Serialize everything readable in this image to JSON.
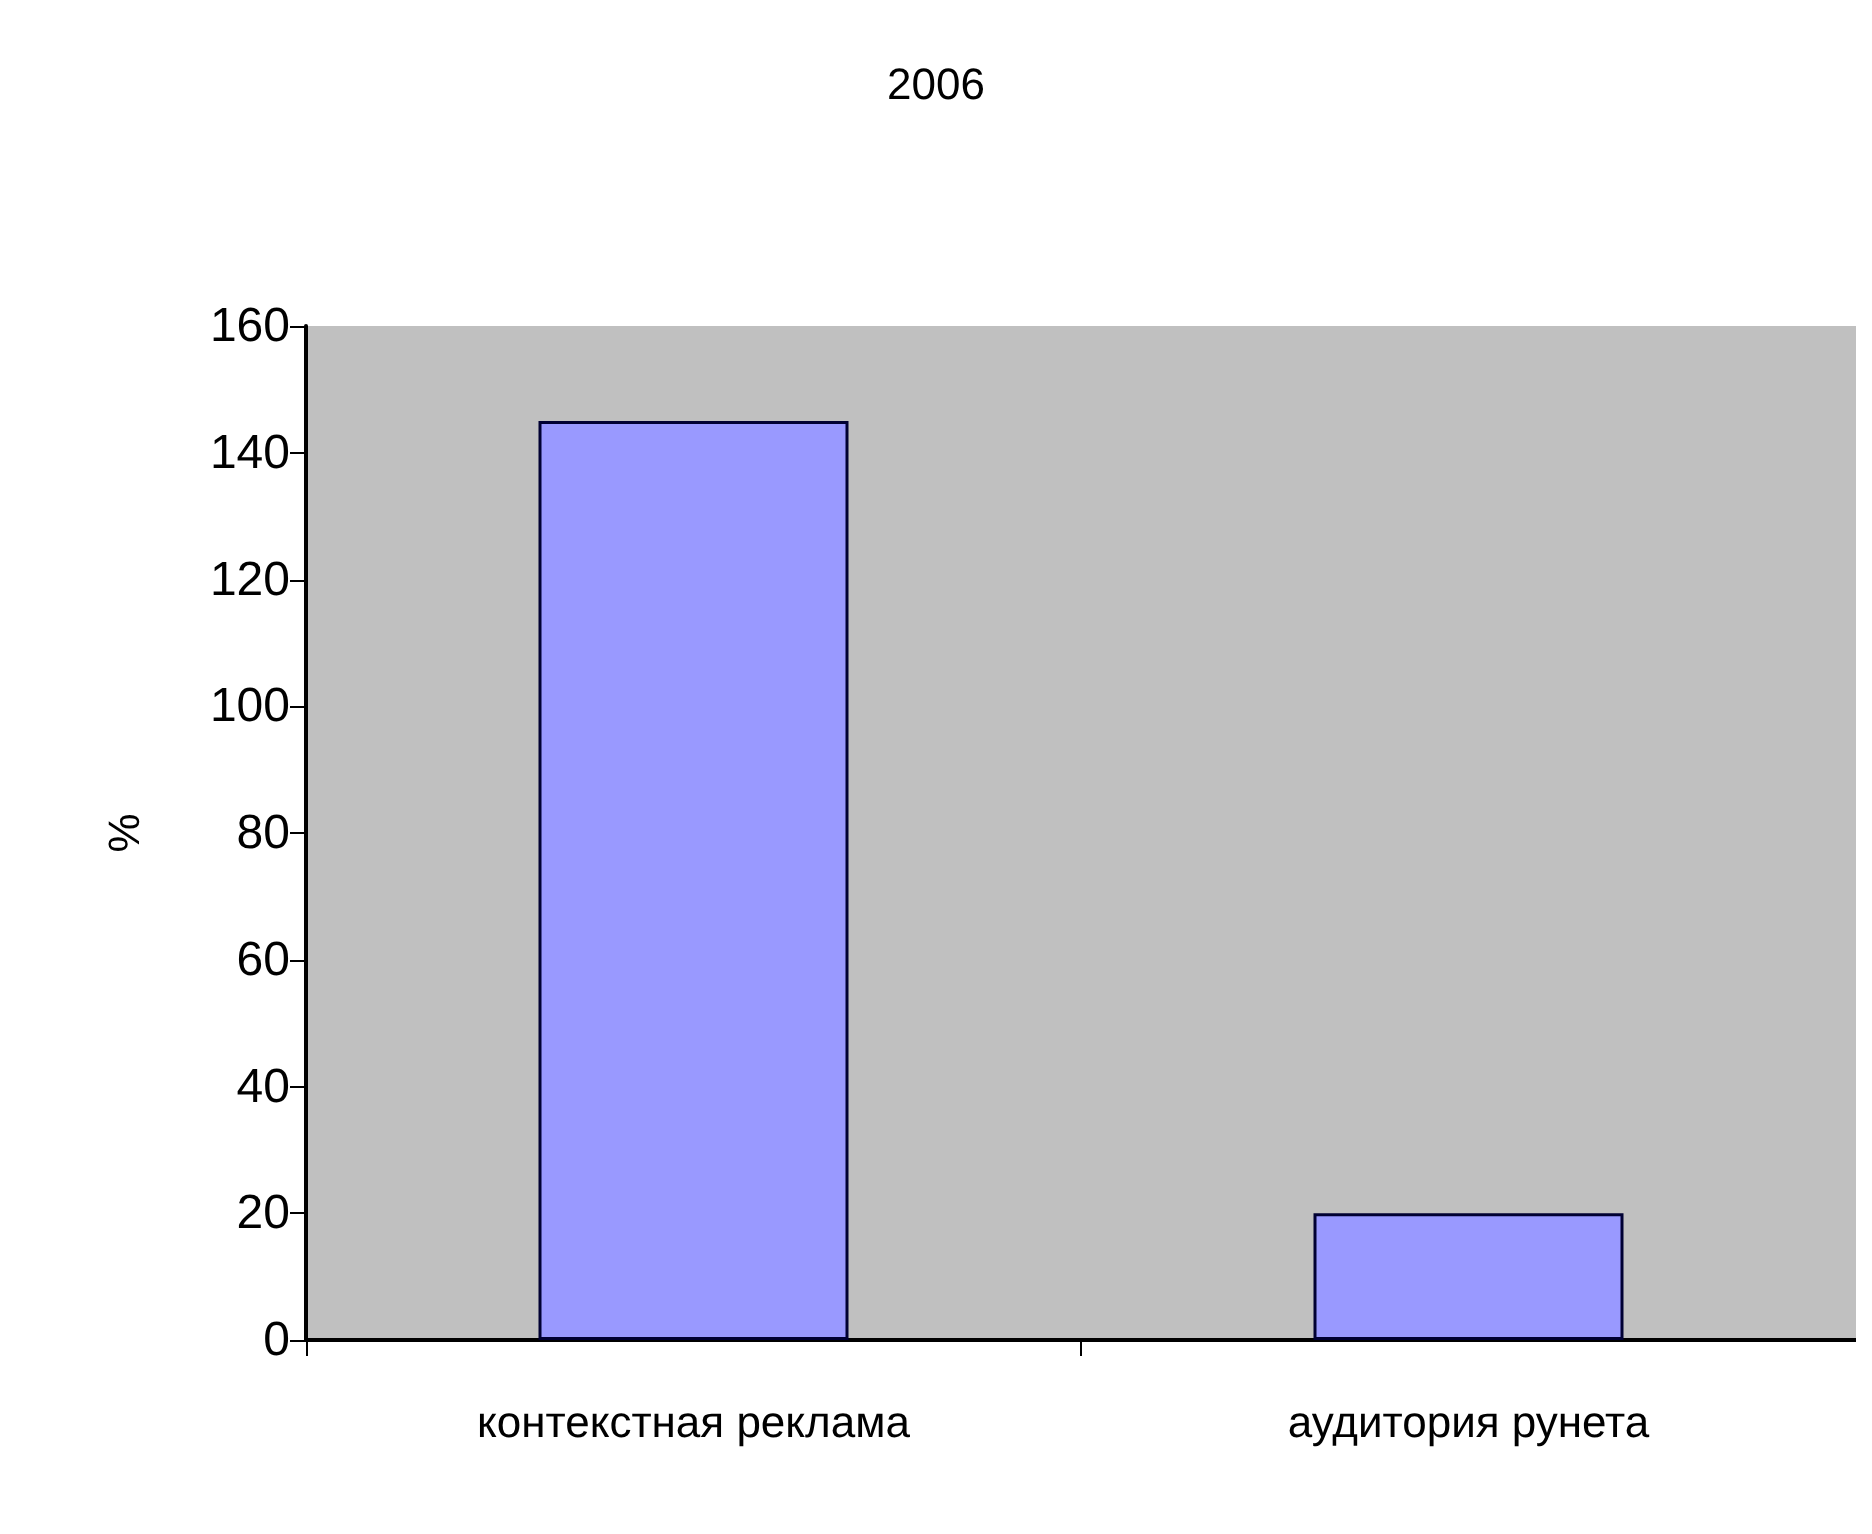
{
  "chart_data": {
    "type": "bar",
    "title": "2006",
    "ylabel": "%",
    "categories": [
      "контекстная реклама",
      "аудитория рунета"
    ],
    "values": [
      145,
      20
    ],
    "color": "#9999ff",
    "ylim": [
      0,
      160
    ],
    "yticks": [
      0,
      20,
      40,
      60,
      80,
      100,
      120,
      140,
      160
    ],
    "grid": false
  }
}
